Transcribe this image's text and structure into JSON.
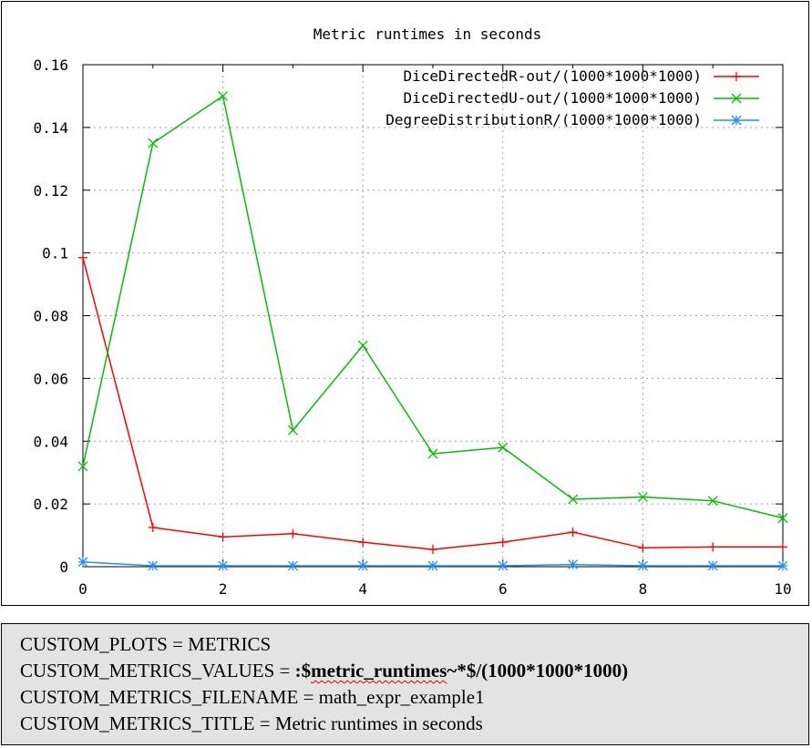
{
  "chart_data": {
    "type": "line",
    "title": "Metric runtimes in seconds",
    "xlabel": "",
    "ylabel": "",
    "xlim": [
      0,
      10
    ],
    "ylim": [
      0,
      0.16
    ],
    "x_ticks": [
      "0",
      "2",
      "4",
      "6",
      "8",
      "10"
    ],
    "y_ticks": [
      "0",
      "0.02",
      "0.04",
      "0.06",
      "0.08",
      "0.1",
      "0.12",
      "0.14",
      "0.16"
    ],
    "grid": true,
    "legend_position": "top-right",
    "x": [
      0,
      1,
      2,
      3,
      4,
      5,
      6,
      7,
      8,
      9,
      10
    ],
    "series": [
      {
        "name": "DiceDirectedR-out/(1000*1000*1000)",
        "color": "#ff0000",
        "marker": "plus",
        "values": [
          0.0985,
          0.0125,
          0.0095,
          0.0105,
          0.0078,
          0.0055,
          0.0078,
          0.011,
          0.006,
          0.0063,
          0.0063
        ]
      },
      {
        "name": "DiceDirectedU-out/(1000*1000*1000)",
        "color": "#00c000",
        "marker": "cross",
        "values": [
          0.032,
          0.135,
          0.15,
          0.0435,
          0.0705,
          0.036,
          0.038,
          0.0215,
          0.0222,
          0.021,
          0.0155
        ]
      },
      {
        "name": "DegreeDistributionR/(1000*1000*1000)",
        "color": "#1e8fff",
        "marker": "star",
        "values": [
          0.0015,
          0.0003,
          0.0003,
          0.0003,
          0.0003,
          0.0003,
          0.0003,
          0.0007,
          0.0003,
          0.0003,
          0.0003
        ]
      }
    ]
  },
  "config": {
    "line1_key": "CUSTOM_PLOTS",
    "line1_eq": " = ",
    "line1_value": "METRICS",
    "line2_key": "CUSTOM_METRICS_VALUES",
    "line2_eq": " = ",
    "line2_value_prefix": ":$",
    "line2_value_squiggle": "metric_runtimes",
    "line2_value_suffix": "~*$/(1000*1000*1000)",
    "line3_key": "CUSTOM_METRICS_FILENAME",
    "line3_eq": " = ",
    "line3_value": "math_expr_example1",
    "line4_key": "CUSTOM_METRICS_TITLE",
    "line4_eq": " = ",
    "line4_value": "Metric runtimes in seconds"
  }
}
